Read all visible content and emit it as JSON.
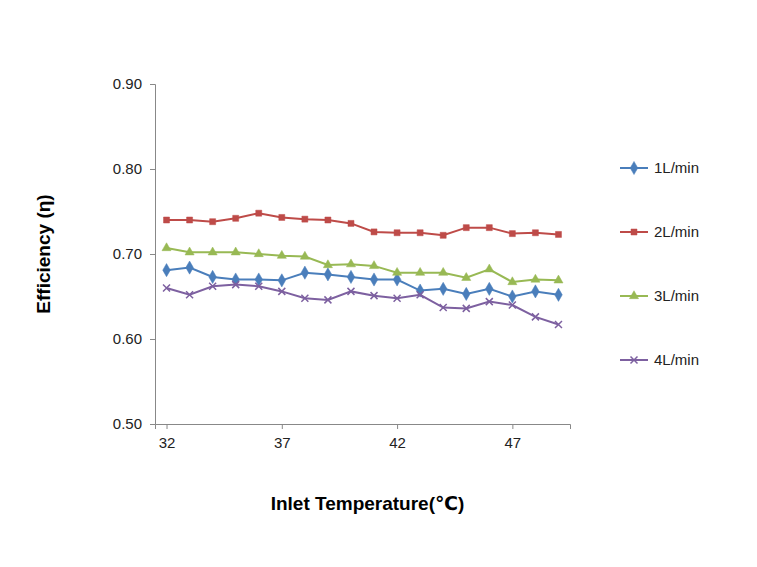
{
  "chart_data": {
    "type": "line",
    "x_label": "Inlet Temperature(℃)",
    "y_label": "Efficiency (η)",
    "x": [
      32,
      33,
      34,
      35,
      36,
      37,
      38,
      39,
      40,
      41,
      42,
      43,
      44,
      45,
      46,
      47,
      48,
      49
    ],
    "xlim": [
      31.5,
      49.5
    ],
    "xticks": [
      32,
      37,
      42,
      47
    ],
    "ylim": [
      0.5,
      0.9
    ],
    "yticks": [
      {
        "value": 0.5,
        "label": "0.50"
      },
      {
        "value": 0.6,
        "label": "0.60"
      },
      {
        "value": 0.7,
        "label": "0.70"
      },
      {
        "value": 0.8,
        "label": "0.80"
      },
      {
        "value": 0.9,
        "label": "0.90"
      }
    ],
    "grid": false,
    "legend": "right",
    "series": [
      {
        "name": "1L/min",
        "color": "#4a7ebb",
        "marker": "diamond",
        "values": [
          0.681,
          0.684,
          0.673,
          0.67,
          0.67,
          0.669,
          0.678,
          0.676,
          0.673,
          0.67,
          0.67,
          0.657,
          0.659,
          0.653,
          0.659,
          0.65,
          0.656,
          0.652
        ]
      },
      {
        "name": "2L/min",
        "color": "#be4b48",
        "marker": "square",
        "values": [
          0.74,
          0.74,
          0.738,
          0.742,
          0.748,
          0.743,
          0.741,
          0.74,
          0.736,
          0.726,
          0.725,
          0.725,
          0.722,
          0.731,
          0.731,
          0.724,
          0.725,
          0.723
        ]
      },
      {
        "name": "3L/min",
        "color": "#98b954",
        "marker": "triangle",
        "values": [
          0.707,
          0.702,
          0.702,
          0.702,
          0.7,
          0.698,
          0.697,
          0.687,
          0.688,
          0.686,
          0.678,
          0.678,
          0.678,
          0.672,
          0.682,
          0.667,
          0.67,
          0.669
        ]
      },
      {
        "name": "4L/min",
        "color": "#7d60a0",
        "marker": "x",
        "values": [
          0.66,
          0.652,
          0.662,
          0.664,
          0.662,
          0.656,
          0.648,
          0.646,
          0.656,
          0.651,
          0.648,
          0.652,
          0.637,
          0.636,
          0.644,
          0.64,
          0.626,
          0.617
        ]
      }
    ]
  }
}
